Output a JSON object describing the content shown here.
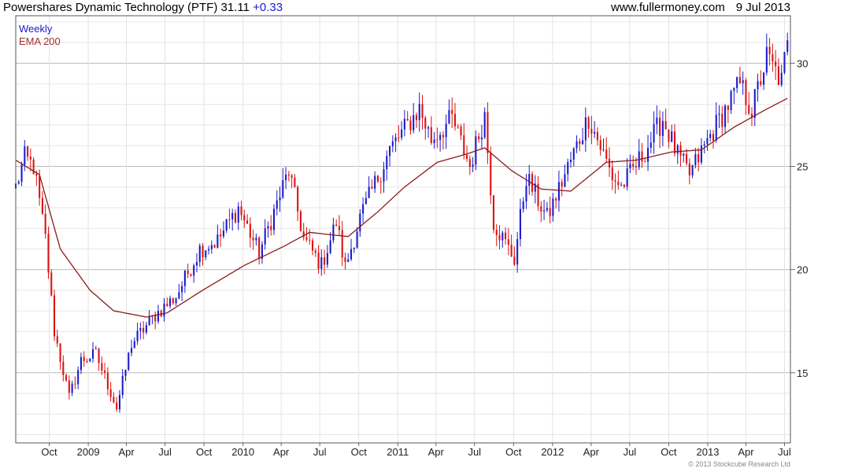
{
  "header": {
    "title": "Powershares Dynamic Technology (PTF)",
    "last": "31.11",
    "change": "+0.33",
    "site": "www.fullermoney.com",
    "date": "9 Jul 2013"
  },
  "legend": {
    "weekly": "Weekly",
    "ema": "EMA 200"
  },
  "copyright": "© 2013 Stockcube Research Ltd",
  "colors": {
    "up": "#1a1acc",
    "down": "#dd1111",
    "ema": "#8b1a1a",
    "grid": "#d8d8d8"
  },
  "chart_data": {
    "type": "candlestick",
    "title": "Powershares Dynamic Technology (PTF) 31.11 +0.33",
    "ylim": [
      11.6,
      32.3
    ],
    "yticks": [
      15,
      20,
      25,
      30
    ],
    "x_start": "2008-07-14",
    "x_end": "2013-07-15",
    "xticks": [
      {
        "label": "Oct",
        "date": "2008-10-01"
      },
      {
        "label": "2009",
        "date": "2009-01-01"
      },
      {
        "label": "Apr",
        "date": "2009-04-01"
      },
      {
        "label": "Jul",
        "date": "2009-07-01"
      },
      {
        "label": "Oct",
        "date": "2009-10-01"
      },
      {
        "label": "2010",
        "date": "2010-01-01"
      },
      {
        "label": "Apr",
        "date": "2010-04-01"
      },
      {
        "label": "Jul",
        "date": "2010-07-01"
      },
      {
        "label": "Oct",
        "date": "2010-10-01"
      },
      {
        "label": "2011",
        "date": "2011-01-01"
      },
      {
        "label": "Apr",
        "date": "2011-04-01"
      },
      {
        "label": "Jul",
        "date": "2011-07-01"
      },
      {
        "label": "Oct",
        "date": "2011-10-01"
      },
      {
        "label": "2012",
        "date": "2012-01-01"
      },
      {
        "label": "Apr",
        "date": "2012-04-01"
      },
      {
        "label": "Jul",
        "date": "2012-07-01"
      },
      {
        "label": "Oct",
        "date": "2012-10-01"
      },
      {
        "label": "2013",
        "date": "2013-01-01"
      },
      {
        "label": "Apr",
        "date": "2013-04-01"
      },
      {
        "label": "Jul",
        "date": "2013-07-01"
      }
    ],
    "close_anchors": [
      {
        "date": "2008-07-14",
        "close": 24.0
      },
      {
        "date": "2008-08-04",
        "close": 25.4
      },
      {
        "date": "2008-08-25",
        "close": 25.0
      },
      {
        "date": "2008-09-22",
        "close": 21.5
      },
      {
        "date": "2008-10-13",
        "close": 17.0
      },
      {
        "date": "2008-11-17",
        "close": 13.8
      },
      {
        "date": "2008-12-15",
        "close": 15.6
      },
      {
        "date": "2009-01-19",
        "close": 15.9
      },
      {
        "date": "2009-03-09",
        "close": 13.3
      },
      {
        "date": "2009-04-13",
        "close": 16.4
      },
      {
        "date": "2009-06-08",
        "close": 17.8
      },
      {
        "date": "2009-07-27",
        "close": 18.7
      },
      {
        "date": "2009-09-21",
        "close": 21.0
      },
      {
        "date": "2009-11-02",
        "close": 21.4
      },
      {
        "date": "2009-12-21",
        "close": 23.0
      },
      {
        "date": "2010-02-08",
        "close": 20.8
      },
      {
        "date": "2010-04-19",
        "close": 24.8
      },
      {
        "date": "2010-05-24",
        "close": 21.5
      },
      {
        "date": "2010-07-05",
        "close": 20.2
      },
      {
        "date": "2010-08-09",
        "close": 22.3
      },
      {
        "date": "2010-08-30",
        "close": 20.1
      },
      {
        "date": "2010-10-04",
        "close": 22.5
      },
      {
        "date": "2010-12-13",
        "close": 25.8
      },
      {
        "date": "2011-02-21",
        "close": 27.8
      },
      {
        "date": "2011-03-21",
        "close": 26.3
      },
      {
        "date": "2011-05-09",
        "close": 27.3
      },
      {
        "date": "2011-06-20",
        "close": 25.0
      },
      {
        "date": "2011-07-25",
        "close": 27.5
      },
      {
        "date": "2011-08-15",
        "close": 22.3
      },
      {
        "date": "2011-10-03",
        "close": 20.5
      },
      {
        "date": "2011-10-31",
        "close": 24.5
      },
      {
        "date": "2011-12-19",
        "close": 22.5
      },
      {
        "date": "2012-03-26",
        "close": 27.4
      },
      {
        "date": "2012-05-21",
        "close": 24.5
      },
      {
        "date": "2012-06-11",
        "close": 24.0
      },
      {
        "date": "2012-07-30",
        "close": 25.5
      },
      {
        "date": "2012-09-17",
        "close": 27.3
      },
      {
        "date": "2012-10-22",
        "close": 25.5
      },
      {
        "date": "2012-11-19",
        "close": 24.6
      },
      {
        "date": "2013-01-07",
        "close": 26.5
      },
      {
        "date": "2013-03-18",
        "close": 29.0
      },
      {
        "date": "2013-04-15",
        "close": 27.7
      },
      {
        "date": "2013-05-20",
        "close": 30.3
      },
      {
        "date": "2013-06-24",
        "close": 29.1
      },
      {
        "date": "2013-07-08",
        "close": 31.11
      }
    ],
    "ema_anchors": [
      {
        "date": "2008-07-14",
        "value": 25.3
      },
      {
        "date": "2008-09-08",
        "value": 24.6
      },
      {
        "date": "2008-10-27",
        "value": 21.0
      },
      {
        "date": "2009-01-05",
        "value": 19.0
      },
      {
        "date": "2009-03-02",
        "value": 18.0
      },
      {
        "date": "2009-05-18",
        "value": 17.7
      },
      {
        "date": "2009-07-06",
        "value": 17.9
      },
      {
        "date": "2009-09-28",
        "value": 19.0
      },
      {
        "date": "2010-01-04",
        "value": 20.2
      },
      {
        "date": "2010-04-05",
        "value": 21.1
      },
      {
        "date": "2010-06-07",
        "value": 21.8
      },
      {
        "date": "2010-09-06",
        "value": 21.6
      },
      {
        "date": "2010-11-15",
        "value": 22.8
      },
      {
        "date": "2011-01-17",
        "value": 24.0
      },
      {
        "date": "2011-04-04",
        "value": 25.2
      },
      {
        "date": "2011-06-13",
        "value": 25.6
      },
      {
        "date": "2011-07-25",
        "value": 25.9
      },
      {
        "date": "2011-09-26",
        "value": 24.8
      },
      {
        "date": "2011-12-05",
        "value": 23.9
      },
      {
        "date": "2012-02-13",
        "value": 23.8
      },
      {
        "date": "2012-05-07",
        "value": 25.2
      },
      {
        "date": "2012-07-16",
        "value": 25.3
      },
      {
        "date": "2012-10-08",
        "value": 25.7
      },
      {
        "date": "2012-12-17",
        "value": 25.8
      },
      {
        "date": "2013-03-04",
        "value": 26.9
      },
      {
        "date": "2013-05-13",
        "value": 27.7
      },
      {
        "date": "2013-07-08",
        "value": 28.3
      }
    ]
  }
}
